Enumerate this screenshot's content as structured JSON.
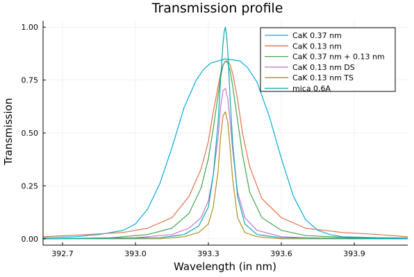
{
  "chart_data": {
    "type": "line",
    "title": "Transmission profile",
    "xlabel": "Wavelength (in nm)",
    "ylabel": "Transmission",
    "xlim": [
      392.62,
      394.12
    ],
    "ylim": [
      -0.03,
      1.03
    ],
    "xticks": [
      "392.7",
      "393.0",
      "393.3",
      "393.6",
      "393.9"
    ],
    "yticks": [
      "0.00",
      "0.25",
      "0.50",
      "0.75",
      "1.00"
    ],
    "grid": true,
    "legend_position": "top-right",
    "series": [
      {
        "name": "CaK 0.37 nm",
        "color": "#00a9e0",
        "x": [
          392.62,
          392.75,
          392.85,
          392.95,
          393.0,
          393.05,
          393.1,
          393.15,
          393.2,
          393.25,
          393.28,
          393.31,
          393.34,
          393.37,
          393.4,
          393.43,
          393.46,
          393.5,
          393.55,
          393.6,
          393.65,
          393.7,
          393.75,
          393.8,
          393.85,
          393.9,
          394.0,
          394.12
        ],
        "y": [
          0.005,
          0.01,
          0.02,
          0.04,
          0.07,
          0.14,
          0.26,
          0.43,
          0.62,
          0.75,
          0.8,
          0.83,
          0.84,
          0.85,
          0.845,
          0.84,
          0.81,
          0.74,
          0.58,
          0.38,
          0.2,
          0.09,
          0.04,
          0.02,
          0.01,
          0.008,
          0.005,
          0.005
        ]
      },
      {
        "name": "CaK 0.13 nm",
        "color": "#e26f46",
        "x": [
          392.62,
          392.8,
          392.95,
          393.05,
          393.15,
          393.22,
          393.27,
          393.3,
          393.32,
          393.34,
          393.35,
          393.36,
          393.37,
          393.38,
          393.39,
          393.4,
          393.42,
          393.44,
          393.47,
          393.52,
          393.6,
          393.7,
          393.85,
          394.0,
          394.12
        ],
        "y": [
          0.01,
          0.02,
          0.03,
          0.05,
          0.1,
          0.2,
          0.33,
          0.46,
          0.6,
          0.72,
          0.78,
          0.82,
          0.84,
          0.84,
          0.82,
          0.78,
          0.66,
          0.5,
          0.34,
          0.19,
          0.1,
          0.05,
          0.03,
          0.02,
          0.01
        ]
      },
      {
        "name": "CaK 0.37 nm + 0.13 nm",
        "color": "#3da44d",
        "x": [
          392.62,
          392.9,
          393.05,
          393.15,
          393.22,
          393.27,
          393.3,
          393.32,
          393.34,
          393.35,
          393.36,
          393.37,
          393.38,
          393.39,
          393.4,
          393.42,
          393.44,
          393.47,
          393.52,
          393.6,
          393.7,
          393.9,
          394.12
        ],
        "y": [
          0.0,
          0.005,
          0.02,
          0.05,
          0.12,
          0.24,
          0.38,
          0.52,
          0.68,
          0.76,
          0.82,
          0.84,
          0.83,
          0.79,
          0.72,
          0.56,
          0.4,
          0.22,
          0.1,
          0.04,
          0.015,
          0.005,
          0.0
        ]
      },
      {
        "name": "CaK 0.13 nm DS",
        "color": "#c271d2",
        "x": [
          392.62,
          393.0,
          393.15,
          393.22,
          393.27,
          393.3,
          393.32,
          393.34,
          393.35,
          393.36,
          393.37,
          393.38,
          393.39,
          393.4,
          393.42,
          393.45,
          393.5,
          393.6,
          393.8,
          394.12
        ],
        "y": [
          0.0,
          0.005,
          0.02,
          0.05,
          0.1,
          0.18,
          0.3,
          0.48,
          0.62,
          0.7,
          0.71,
          0.66,
          0.55,
          0.42,
          0.22,
          0.1,
          0.04,
          0.01,
          0.0,
          0.0
        ]
      },
      {
        "name": "CaK 0.13 nm TS",
        "color": "#ac8d18",
        "x": [
          392.62,
          393.1,
          393.2,
          393.26,
          393.3,
          393.32,
          393.34,
          393.35,
          393.36,
          393.37,
          393.38,
          393.39,
          393.4,
          393.42,
          393.45,
          393.5,
          393.6,
          394.12
        ],
        "y": [
          0.0,
          0.0,
          0.01,
          0.03,
          0.07,
          0.15,
          0.32,
          0.48,
          0.58,
          0.6,
          0.55,
          0.42,
          0.28,
          0.1,
          0.03,
          0.01,
          0.0,
          0.0
        ]
      },
      {
        "name": "mica 0.6A",
        "color": "#00a9ad",
        "x": [
          392.62,
          393.1,
          393.2,
          393.26,
          393.3,
          393.32,
          393.34,
          393.35,
          393.36,
          393.365,
          393.37,
          393.375,
          393.38,
          393.39,
          393.4,
          393.42,
          393.45,
          393.5,
          393.6,
          394.12
        ],
        "y": [
          0.0,
          0.005,
          0.02,
          0.06,
          0.15,
          0.3,
          0.55,
          0.75,
          0.92,
          0.98,
          1.0,
          0.96,
          0.88,
          0.65,
          0.45,
          0.2,
          0.07,
          0.02,
          0.005,
          0.0
        ]
      }
    ]
  }
}
